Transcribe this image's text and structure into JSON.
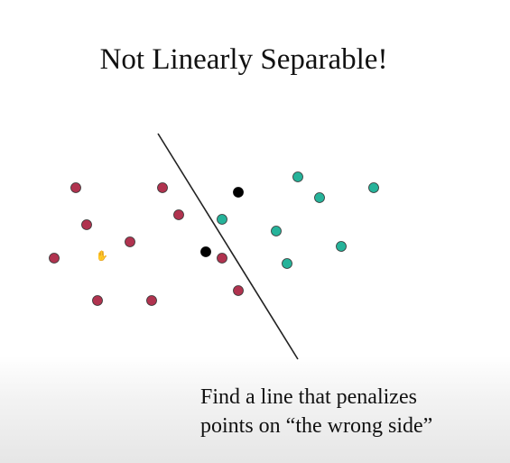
{
  "slide": {
    "title": "Not Linearly Separable!",
    "caption_line1": "Find a line that penalizes",
    "caption_line2": "points on “the wrong side”"
  },
  "icons": {
    "cursor": "hand-cursor-icon"
  },
  "colors": {
    "class_a": "#b0334f",
    "class_b": "#26b39a",
    "misclassified": "#000000",
    "separator": "#222222"
  },
  "chart_data": {
    "type": "scatter",
    "series": [
      {
        "values": [
          [
            84,
            208
          ],
          [
            180,
            208
          ],
          [
            96,
            249
          ],
          [
            198,
            238
          ],
          [
            144,
            268
          ],
          [
            60,
            286
          ],
          [
            246,
            286
          ],
          [
            264,
            322
          ],
          [
            108,
            333
          ],
          [
            168,
            333
          ]
        ]
      },
      {
        "values": [
          [
            330,
            196
          ],
          [
            414,
            208
          ],
          [
            354,
            219
          ],
          [
            246,
            243
          ],
          [
            306,
            256
          ],
          [
            378,
            273
          ],
          [
            318,
            292
          ]
        ]
      },
      {
        "values": [
          [
            264,
            213
          ],
          [
            228,
            279
          ]
        ]
      }
    ],
    "separator": {
      "from": [
        175,
        148
      ],
      "to": [
        330,
        398
      ]
    }
  }
}
